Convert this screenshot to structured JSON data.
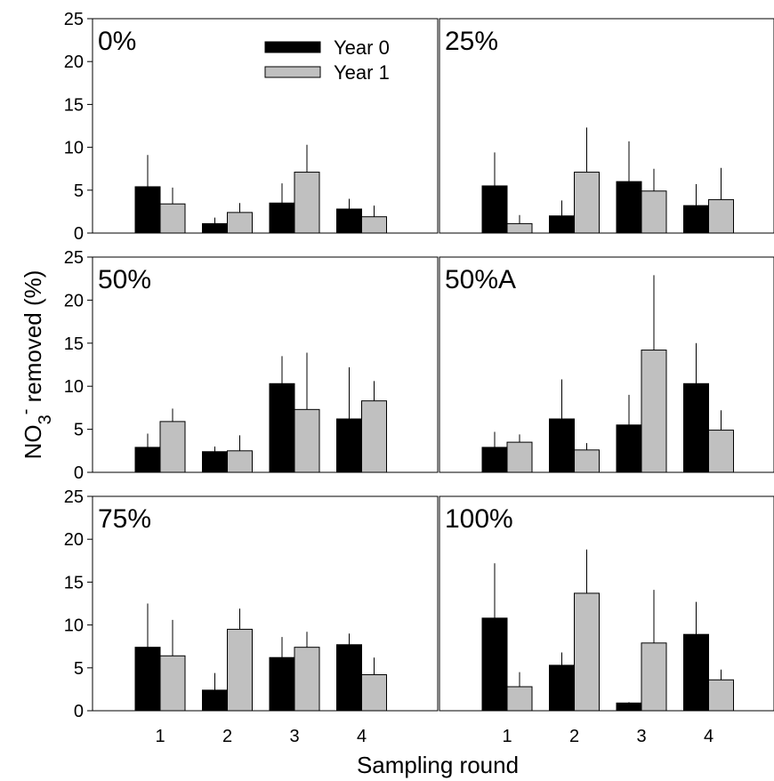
{
  "chart_data": {
    "type": "bar",
    "ylabel": {
      "main": "NO",
      "sub": "3",
      "sup": "-",
      "rest": " removed (%)"
    },
    "xlabel": "Sampling round",
    "categories": [
      "1",
      "2",
      "3",
      "4"
    ],
    "ylim": [
      0,
      25
    ],
    "yticks": [
      "0",
      "5",
      "10",
      "15",
      "20",
      "25"
    ],
    "legend": {
      "placement": "inside-top-of-first-panel",
      "entries": [
        {
          "name": "Year 0",
          "color": "#000000"
        },
        {
          "name": "Year 1",
          "color": "#c0c0c0"
        }
      ]
    },
    "panels": [
      {
        "label": "0%",
        "series": [
          {
            "name": "Year 0",
            "values": [
              5.4,
              1.1,
              3.5,
              2.8
            ],
            "errors": [
              3.7,
              0.7,
              2.3,
              1.2
            ]
          },
          {
            "name": "Year 1",
            "values": [
              3.4,
              2.4,
              7.1,
              1.9
            ],
            "errors": [
              1.9,
              1.1,
              3.2,
              1.3
            ]
          }
        ]
      },
      {
        "label": "25%",
        "series": [
          {
            "name": "Year 0",
            "values": [
              5.5,
              2.0,
              6.0,
              3.2
            ],
            "errors": [
              3.9,
              1.8,
              4.7,
              2.5
            ]
          },
          {
            "name": "Year 1",
            "values": [
              1.1,
              7.1,
              4.9,
              3.9
            ],
            "errors": [
              1.0,
              5.2,
              2.6,
              3.7
            ]
          }
        ]
      },
      {
        "label": "50%",
        "series": [
          {
            "name": "Year 0",
            "values": [
              2.9,
              2.4,
              10.3,
              6.2
            ],
            "errors": [
              1.6,
              0.6,
              3.2,
              6.0
            ]
          },
          {
            "name": "Year 1",
            "values": [
              5.9,
              2.5,
              7.3,
              8.3
            ],
            "errors": [
              1.5,
              1.8,
              6.6,
              2.3
            ]
          }
        ]
      },
      {
        "label": "50%A",
        "series": [
          {
            "name": "Year 0",
            "values": [
              2.9,
              6.2,
              5.5,
              10.3
            ],
            "errors": [
              1.8,
              4.6,
              3.5,
              4.7
            ]
          },
          {
            "name": "Year 1",
            "values": [
              3.5,
              2.6,
              14.2,
              4.9
            ],
            "errors": [
              0.9,
              0.8,
              8.7,
              2.3
            ]
          }
        ]
      },
      {
        "label": "75%",
        "series": [
          {
            "name": "Year 0",
            "values": [
              7.4,
              2.4,
              6.2,
              7.7
            ],
            "errors": [
              5.1,
              2.0,
              2.4,
              1.3
            ]
          },
          {
            "name": "Year 1",
            "values": [
              6.4,
              9.5,
              7.4,
              4.2
            ],
            "errors": [
              4.2,
              2.4,
              1.8,
              2.0
            ]
          }
        ]
      },
      {
        "label": "100%",
        "series": [
          {
            "name": "Year 0",
            "values": [
              10.8,
              5.3,
              0.9,
              8.9
            ],
            "errors": [
              6.4,
              1.5,
              0.1,
              3.8
            ]
          },
          {
            "name": "Year 1",
            "values": [
              2.8,
              13.7,
              7.9,
              3.6
            ],
            "errors": [
              1.7,
              5.1,
              6.2,
              1.2
            ]
          }
        ]
      }
    ]
  }
}
